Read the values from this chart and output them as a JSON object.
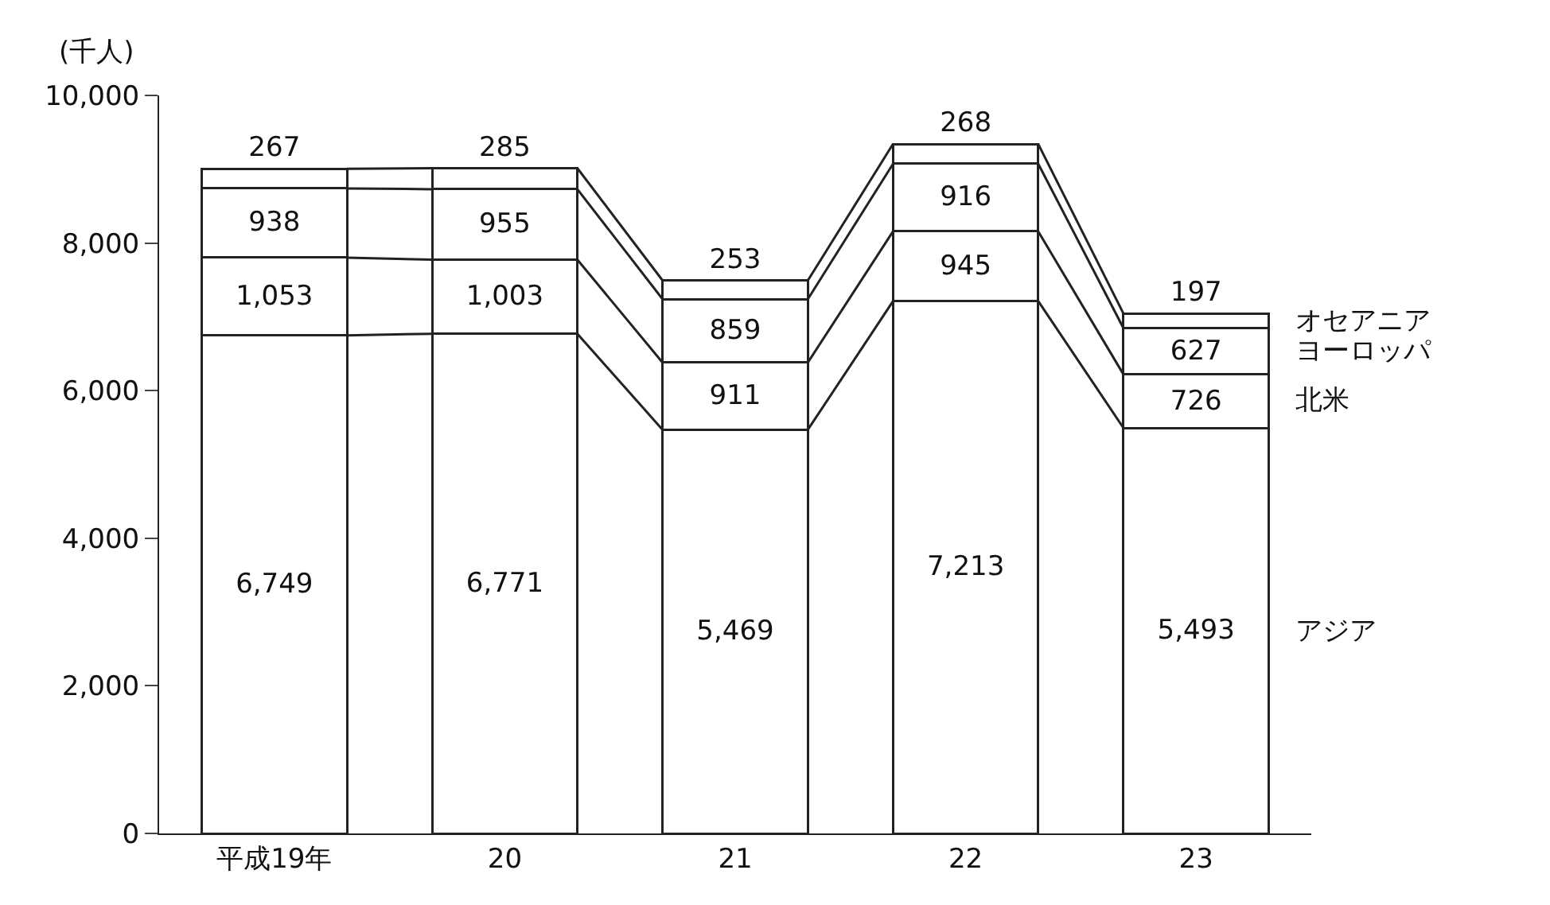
{
  "chart_data": {
    "type": "bar",
    "stacked": true,
    "ylabel": "(千人)",
    "categories": [
      "平成19年",
      "20",
      "21",
      "22",
      "23"
    ],
    "series": [
      {
        "name": "アジア",
        "color": "#ffffff",
        "values": [
          6749,
          6771,
          5469,
          7213,
          5493
        ],
        "value_labels": [
          "6,749",
          "6,771",
          "5,469",
          "7,213",
          "5,493"
        ]
      },
      {
        "name": "北米",
        "color": "#ffffff",
        "values": [
          1053,
          1003,
          911,
          945,
          726
        ],
        "value_labels": [
          "1,053",
          "1,003",
          "911",
          "945",
          "726"
        ]
      },
      {
        "name": "ヨーロッパ",
        "color": "#ffffff",
        "values": [
          938,
          955,
          859,
          916,
          627
        ],
        "value_labels": [
          "938",
          "955",
          "859",
          "916",
          "627"
        ]
      },
      {
        "name": "オセアニア",
        "color": "#ffffff",
        "values": [
          267,
          285,
          253,
          268,
          197
        ],
        "value_labels": [
          "267",
          "285",
          "253",
          "268",
          "197"
        ]
      }
    ],
    "ylim": [
      0,
      10000
    ],
    "yticks": [
      0,
      {
        "value": 2000,
        "label": "2,000"
      },
      {
        "value": 4000,
        "label": "4,000"
      },
      {
        "value": 6000,
        "label": "6,000"
      },
      {
        "value": 8000,
        "label": "8,000"
      },
      {
        "value": 10000,
        "label": "10,000"
      }
    ],
    "legend": false
  }
}
